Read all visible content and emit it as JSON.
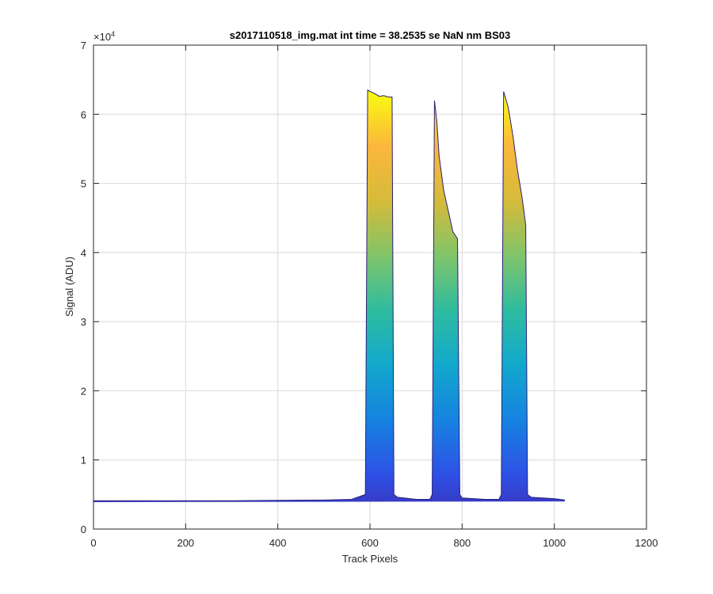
{
  "chart_data": {
    "type": "area",
    "title": "s2017110518_img.mat int time = 38.2535 se  NaN nm BS03",
    "xlabel": "Track Pixels",
    "ylabel": "Signal (ADU)",
    "xlim": [
      0,
      1200
    ],
    "ylim": [
      0,
      70000
    ],
    "y_multiplier": "×10",
    "y_multiplier_exp": "4",
    "xticks": [
      0,
      200,
      400,
      600,
      800,
      1000,
      1200
    ],
    "yticks": [
      0,
      10000,
      20000,
      30000,
      40000,
      50000,
      60000,
      70000
    ],
    "xtick_labels": [
      "0",
      "200",
      "400",
      "600",
      "800",
      "1000",
      "1200"
    ],
    "ytick_labels": [
      "0",
      "1",
      "2",
      "3",
      "4",
      "5",
      "6",
      "7"
    ],
    "grid": true,
    "colormap": [
      "#3e26a8",
      "#2e51e6",
      "#1683e0",
      "#12a8cc",
      "#2ebc9f",
      "#80c46a",
      "#d5bb3a",
      "#fbb73d",
      "#f9fb0e"
    ],
    "x": [
      0,
      100,
      200,
      300,
      400,
      500,
      560,
      590,
      595,
      600,
      610,
      620,
      630,
      640,
      648,
      652,
      660,
      700,
      730,
      735,
      740,
      745,
      750,
      760,
      770,
      780,
      790,
      795,
      800,
      850,
      880,
      885,
      890,
      900,
      910,
      920,
      930,
      938,
      942,
      950,
      1000,
      1023
    ],
    "envelope": [
      4100,
      4100,
      4100,
      4100,
      4150,
      4200,
      4300,
      5000,
      63500,
      63300,
      63000,
      62600,
      62700,
      62500,
      62500,
      5000,
      4600,
      4300,
      4300,
      5000,
      62000,
      59000,
      54000,
      49000,
      46000,
      43000,
      42000,
      5000,
      4500,
      4300,
      4300,
      5000,
      63300,
      61000,
      57000,
      52000,
      48000,
      44000,
      5000,
      4600,
      4400,
      4200
    ]
  }
}
